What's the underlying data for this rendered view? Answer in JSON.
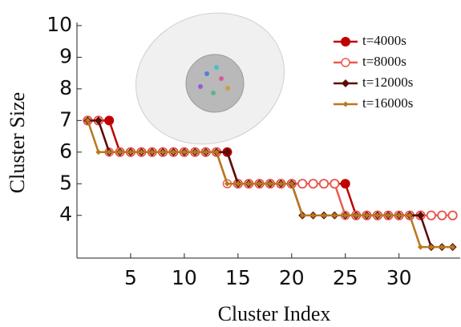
{
  "chart_data": {
    "type": "line",
    "xlabel": "Cluster Index",
    "ylabel": "Cluster Size",
    "x": [
      1,
      2,
      3,
      4,
      5,
      6,
      7,
      8,
      9,
      10,
      11,
      12,
      13,
      14,
      15,
      16,
      17,
      18,
      19,
      20,
      21,
      22,
      23,
      24,
      25,
      26,
      27,
      28,
      29,
      30,
      31,
      32,
      33,
      34,
      35
    ],
    "series": [
      {
        "name": "t=4000s",
        "color": "#c00000",
        "marker": "filled-circle",
        "values": [
          7,
          7,
          7,
          6,
          6,
          6,
          6,
          6,
          6,
          6,
          6,
          6,
          6,
          6,
          5,
          5,
          5,
          5,
          5,
          5,
          5,
          5,
          5,
          5,
          5,
          4,
          4,
          4,
          4,
          4,
          4,
          4,
          4,
          4,
          4
        ]
      },
      {
        "name": "t=8000s",
        "color": "#ec5a50",
        "marker": "open-circle",
        "values": [
          7,
          7,
          6,
          6,
          6,
          6,
          6,
          6,
          6,
          6,
          6,
          6,
          6,
          5,
          5,
          5,
          5,
          5,
          5,
          5,
          5,
          5,
          5,
          5,
          4,
          4,
          4,
          4,
          4,
          4,
          4,
          4,
          4,
          4,
          4
        ]
      },
      {
        "name": "t=12000s",
        "color": "#5a0c08",
        "marker": "diamond",
        "values": [
          7,
          7,
          6,
          6,
          6,
          6,
          6,
          6,
          6,
          6,
          6,
          6,
          6,
          6,
          5,
          5,
          5,
          5,
          5,
          5,
          4,
          4,
          4,
          4,
          4,
          4,
          4,
          4,
          4,
          4,
          4,
          4,
          3,
          3,
          3
        ]
      },
      {
        "name": "t=16000s",
        "color": "#b8781c",
        "marker": "small-diamond",
        "values": [
          7,
          6,
          6,
          6,
          6,
          6,
          6,
          6,
          6,
          6,
          6,
          6,
          6,
          5,
          5,
          5,
          5,
          5,
          5,
          5,
          4,
          4,
          4,
          4,
          4,
          4,
          4,
          4,
          4,
          4,
          4,
          3,
          3,
          3,
          3
        ]
      }
    ],
    "xlim": [
      0,
      35.7
    ],
    "ylim": [
      2.65,
      10.1
    ],
    "xticks": [
      5,
      10,
      15,
      20,
      25,
      30
    ],
    "yticks": [
      4,
      5,
      6,
      7,
      8,
      9,
      10
    ],
    "legend": "upper-right"
  }
}
